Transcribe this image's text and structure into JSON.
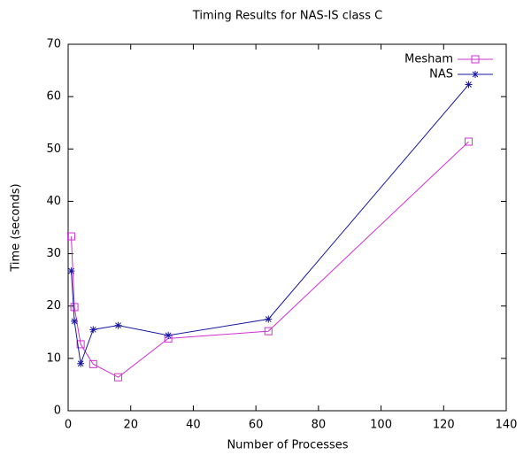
{
  "chart_data": {
    "type": "line",
    "title": "Timing Results for NAS-IS class C",
    "x_label": "Number of Processes",
    "y_label": "Time (seconds)",
    "x": [
      1,
      2,
      4,
      8,
      16,
      32,
      64,
      128
    ],
    "series": [
      {
        "name": "Mesham",
        "color": "#d030d0",
        "marker": "square",
        "values": [
          33.3,
          19.8,
          12.7,
          8.9,
          6.4,
          13.8,
          15.2,
          51.4
        ]
      },
      {
        "name": "NAS",
        "color": "#1818a0",
        "marker": "star",
        "values": [
          26.7,
          17.1,
          9.0,
          15.5,
          16.3,
          14.4,
          17.5,
          62.3
        ]
      }
    ],
    "xlim": [
      0,
      140
    ],
    "xticks": [
      0,
      20,
      40,
      60,
      80,
      100,
      120,
      140
    ],
    "ylim": [
      0,
      70
    ],
    "yticks": [
      0,
      10,
      20,
      30,
      40,
      50,
      60,
      70
    ],
    "legend": "upper right"
  }
}
